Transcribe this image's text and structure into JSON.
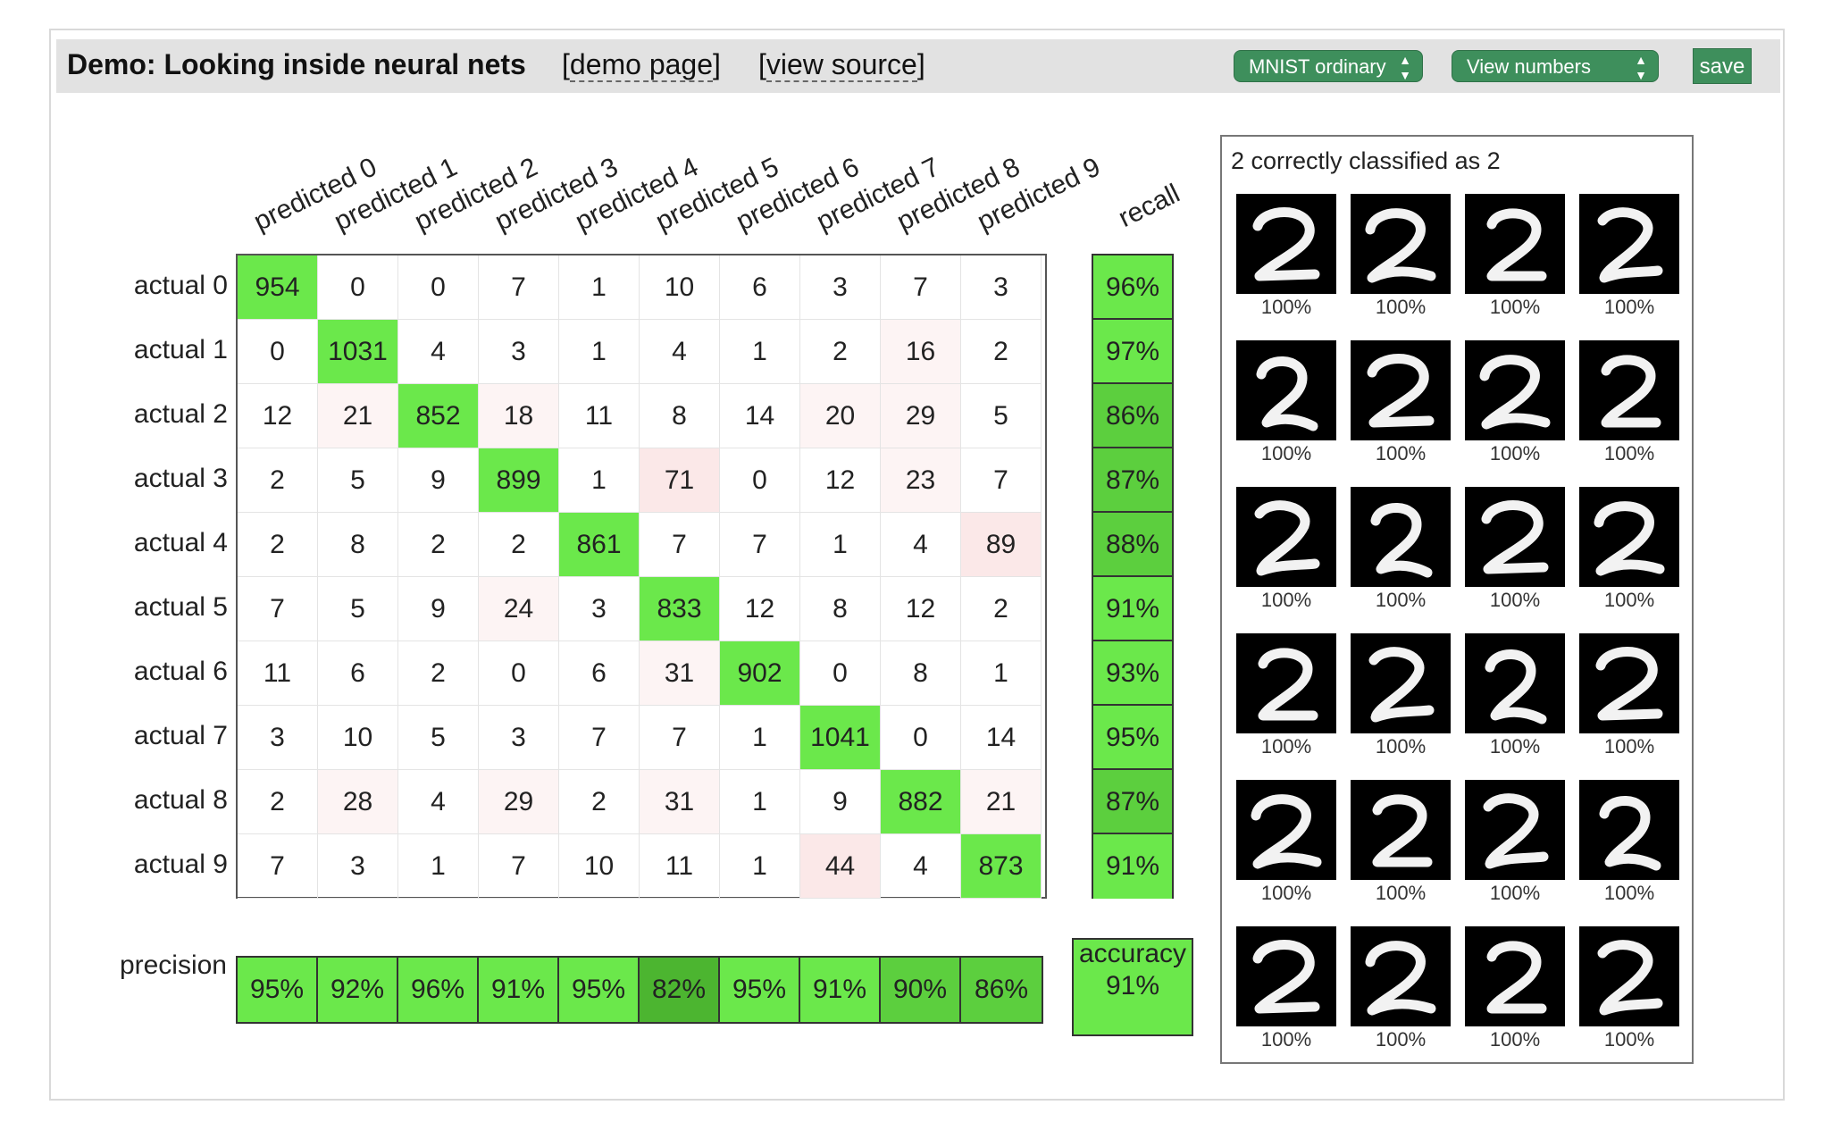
{
  "header": {
    "title": "Demo: Looking inside neural nets",
    "demo_link": "demo page",
    "source_link": "view source",
    "dataset_select": "MNIST ordinary",
    "view_select": "View numbers",
    "save_label": "save"
  },
  "matrix": {
    "column_labels": [
      "predicted 0",
      "predicted 1",
      "predicted 2",
      "predicted 3",
      "predicted 4",
      "predicted 5",
      "predicted 6",
      "predicted 7",
      "predicted 8",
      "predicted 9"
    ],
    "row_labels": [
      "actual 0",
      "actual 1",
      "actual 2",
      "actual 3",
      "actual 4",
      "actual 5",
      "actual 6",
      "actual 7",
      "actual 8",
      "actual 9"
    ],
    "values": [
      [
        954,
        0,
        0,
        7,
        1,
        10,
        6,
        3,
        7,
        3
      ],
      [
        0,
        1031,
        4,
        3,
        1,
        4,
        1,
        2,
        16,
        2
      ],
      [
        12,
        21,
        852,
        18,
        11,
        8,
        14,
        20,
        29,
        5
      ],
      [
        2,
        5,
        9,
        899,
        1,
        71,
        0,
        12,
        23,
        7
      ],
      [
        2,
        8,
        2,
        2,
        861,
        7,
        7,
        1,
        4,
        89
      ],
      [
        7,
        5,
        9,
        24,
        3,
        833,
        12,
        8,
        12,
        2
      ],
      [
        11,
        6,
        2,
        0,
        6,
        31,
        902,
        0,
        8,
        1
      ],
      [
        3,
        10,
        5,
        3,
        7,
        7,
        1,
        1041,
        0,
        14
      ],
      [
        2,
        28,
        4,
        29,
        2,
        31,
        1,
        9,
        882,
        21
      ],
      [
        7,
        3,
        1,
        7,
        10,
        11,
        1,
        44,
        4,
        873
      ]
    ],
    "recall_label": "recall",
    "recall": [
      "96%",
      "97%",
      "86%",
      "87%",
      "88%",
      "91%",
      "93%",
      "95%",
      "87%",
      "91%"
    ],
    "precision_label": "precision",
    "precision": [
      "95%",
      "92%",
      "96%",
      "91%",
      "95%",
      "82%",
      "95%",
      "91%",
      "90%",
      "86%"
    ],
    "accuracy_label": "accuracy",
    "accuracy": "91%"
  },
  "colors": {
    "strong_green": "#6be84b",
    "mid_green": "#5ccf3e",
    "dark_green": "#4cb530",
    "button_green": "#3e8f5c"
  },
  "panel": {
    "title": "2 correctly classified as 2",
    "thumbnails": [
      "100%",
      "100%",
      "100%",
      "100%",
      "100%",
      "100%",
      "100%",
      "100%",
      "100%",
      "100%",
      "100%",
      "100%",
      "100%",
      "100%",
      "100%",
      "100%",
      "100%",
      "100%",
      "100%",
      "100%",
      "100%",
      "100%",
      "100%",
      "100%"
    ]
  }
}
